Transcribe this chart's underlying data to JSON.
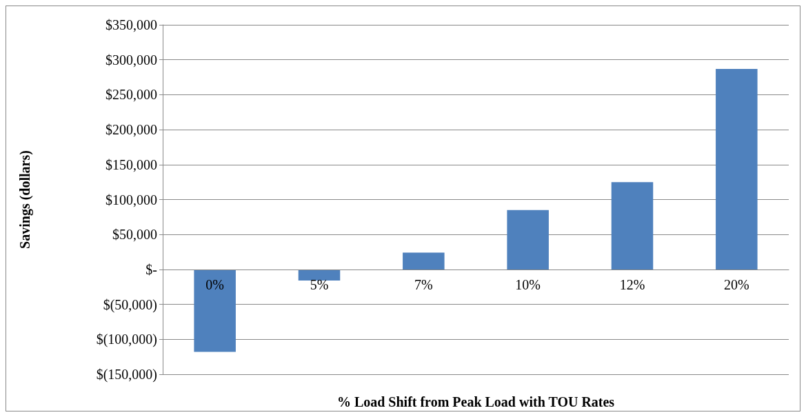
{
  "chart_data": {
    "type": "bar",
    "xlabel": "% Load Shift from Peak Load with TOU Rates",
    "ylabel": "Savings (dollars)",
    "categories": [
      "0%",
      "5%",
      "7%",
      "10%",
      "12%",
      "20%"
    ],
    "values": [
      -118000,
      -16000,
      24000,
      85000,
      125000,
      287000
    ],
    "color": "#4f81bd",
    "ylim": [
      -150000,
      350000
    ],
    "yticks": [
      {
        "value": -150000,
        "label": "$(150,000)"
      },
      {
        "value": -100000,
        "label": "$(100,000)"
      },
      {
        "value": -50000,
        "label": "$(50,000)"
      },
      {
        "value": 0,
        "label": "$-"
      },
      {
        "value": 50000,
        "label": "$50,000"
      },
      {
        "value": 100000,
        "label": "$100,000"
      },
      {
        "value": 150000,
        "label": "$150,000"
      },
      {
        "value": 200000,
        "label": "$200,000"
      },
      {
        "value": 250000,
        "label": "$250,000"
      },
      {
        "value": 300000,
        "label": "$300,000"
      },
      {
        "value": 350000,
        "label": "$350,000"
      }
    ],
    "grid": "y"
  }
}
